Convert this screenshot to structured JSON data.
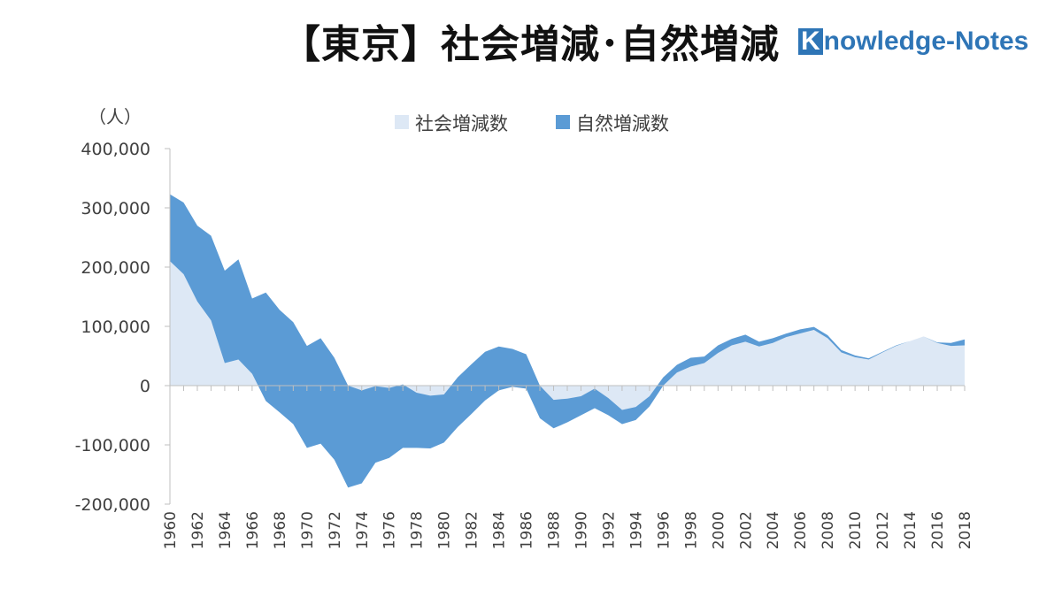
{
  "header": {
    "title": "【東京】社会増減･自然増減",
    "logo_mark": "K",
    "logo_rest": "nowledge-Notes"
  },
  "chart_data": {
    "type": "area",
    "stacked": true,
    "title": "【東京】社会増減･自然増減",
    "ylabel": "（人）",
    "xlabel": "",
    "ylim": [
      -200000,
      400000
    ],
    "yticks": [
      400000,
      300000,
      200000,
      100000,
      0,
      -100000,
      -200000
    ],
    "ytick_labels": [
      "400,000",
      "300,000",
      "200,000",
      "100,000",
      "0",
      "-100,000",
      "-200,000"
    ],
    "legend_position": "top-center",
    "grid": false,
    "x": [
      1960,
      1961,
      1962,
      1963,
      1964,
      1965,
      1966,
      1967,
      1968,
      1969,
      1970,
      1971,
      1972,
      1973,
      1974,
      1975,
      1976,
      1977,
      1978,
      1979,
      1980,
      1981,
      1982,
      1983,
      1984,
      1985,
      1986,
      1987,
      1988,
      1989,
      1990,
      1991,
      1992,
      1993,
      1994,
      1995,
      1996,
      1997,
      1998,
      1999,
      2000,
      2001,
      2002,
      2003,
      2004,
      2005,
      2006,
      2007,
      2008,
      2009,
      2010,
      2011,
      2012,
      2013,
      2014,
      2015,
      2016,
      2017,
      2018
    ],
    "series": [
      {
        "name": "社会増減数",
        "color": "#dde8f5",
        "values": [
          210000,
          188000,
          142000,
          110000,
          38000,
          44000,
          20000,
          -26000,
          -45000,
          -65000,
          -105000,
          -98000,
          -125000,
          -172000,
          -165000,
          -130000,
          -122000,
          -105000,
          -105000,
          -106000,
          -96000,
          -70000,
          -48000,
          -25000,
          -8000,
          -2000,
          -5000,
          -55000,
          -72000,
          -62000,
          -50000,
          -38000,
          -50000,
          -65000,
          -58000,
          -35000,
          0,
          22000,
          32000,
          38000,
          55000,
          68000,
          74000,
          66000,
          72000,
          82000,
          88000,
          94000,
          80000,
          56000,
          48000,
          44000,
          56000,
          67000,
          75000,
          83000,
          72000,
          67000,
          68000
        ]
      },
      {
        "name": "自然増減数",
        "color": "#5b9bd5",
        "values": [
          113000,
          121000,
          128000,
          143000,
          156000,
          169000,
          127000,
          183000,
          173000,
          172000,
          172000,
          178000,
          172000,
          172000,
          157000,
          129000,
          118000,
          107000,
          93000,
          89000,
          81000,
          84000,
          84000,
          82000,
          74000,
          64000,
          58000,
          55000,
          48000,
          40000,
          32000,
          33000,
          29000,
          24000,
          22000,
          17000,
          14000,
          13000,
          15000,
          11000,
          13000,
          11000,
          12000,
          8000,
          8000,
          6000,
          7000,
          5000,
          5000,
          4000,
          3000,
          2000,
          1000,
          1000,
          0,
          0,
          1000,
          5000,
          10000
        ]
      }
    ]
  }
}
